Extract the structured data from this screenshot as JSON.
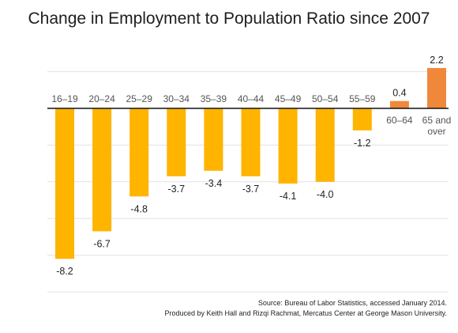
{
  "chart_data": {
    "type": "bar",
    "title": "Change in Employment to Population Ratio since 2007",
    "categories": [
      "16–19",
      "20–24",
      "25–29",
      "30–34",
      "35–39",
      "40–44",
      "45–49",
      "50–54",
      "55–59",
      "60–64",
      "65 and over"
    ],
    "category_lines": [
      [
        "16–19"
      ],
      [
        "20–24"
      ],
      [
        "25–29"
      ],
      [
        "30–34"
      ],
      [
        "35–39"
      ],
      [
        "40–44"
      ],
      [
        "45–49"
      ],
      [
        "50–54"
      ],
      [
        "55–59"
      ],
      [
        "60–64"
      ],
      [
        "65 and",
        "over"
      ]
    ],
    "values": [
      -8.2,
      -6.7,
      -4.8,
      -3.7,
      -3.4,
      -3.7,
      -4.1,
      -4.0,
      -1.2,
      0.4,
      2.2
    ],
    "value_labels": [
      "-8.2",
      "-6.7",
      "-4.8",
      "-3.7",
      "-3.4",
      "-3.7",
      "-4.1",
      "-4.0",
      "-1.2",
      "0.4",
      "2.2"
    ],
    "colors": {
      "negative": "#FFB400",
      "positive": "#F0883C",
      "grid": "#e3e3e3",
      "axis": "#111111"
    },
    "ylim": [
      -10,
      2.5
    ],
    "grid": true,
    "xlabel": "",
    "ylabel": ""
  },
  "source": {
    "line1": "Source: Bureau of Labor Statistics, accessed January 2014.",
    "line2": "Produced by Keith Hall and Rizqi Rachmat, Mercatus Center at George Mason University."
  }
}
